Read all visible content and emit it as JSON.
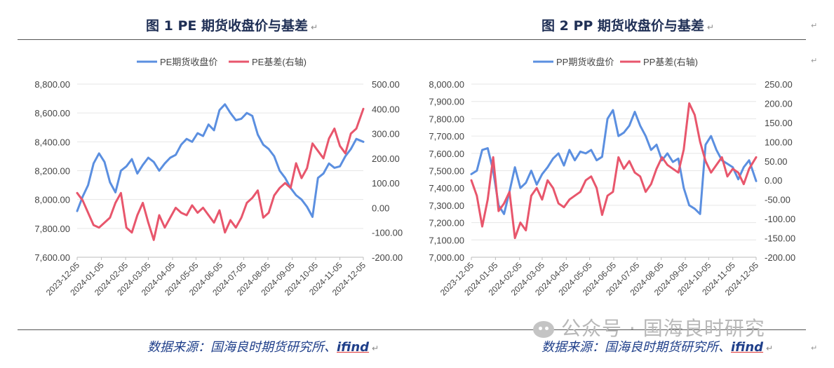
{
  "figures": [
    {
      "title": "图 1 PE 期货收盘价与基差",
      "source_label": "数据来源：国海良时期货研究所、",
      "source_brand": "ifind"
    },
    {
      "title": "图 2 PP 期货收盘价与基差",
      "source_label": "数据来源：国海良时期货研究所、",
      "source_brand": "ifind"
    }
  ],
  "watermark": "公众号 · 国海良时研究",
  "colors": {
    "price": "#5b8fe0",
    "basis": "#e8566c",
    "grid": "#e6e6e6",
    "title": "#1f2f55",
    "source": "#1f3f8a"
  },
  "chart_data": [
    {
      "type": "line",
      "x_type": "date",
      "x_ticks": [
        "2023-12-05",
        "2024-01-05",
        "2024-02-05",
        "2024-03-05",
        "2024-04-05",
        "2024-05-05",
        "2024-06-05",
        "2024-07-05",
        "2024-08-05",
        "2024-09-05",
        "2024-10-05",
        "2024-11-05",
        "2024-12-05"
      ],
      "y_left": {
        "min": 7600,
        "max": 8800,
        "step": 200,
        "tick_labels": [
          "7,600.00",
          "7,800.00",
          "8,000.00",
          "8,200.00",
          "8,400.00",
          "8,600.00",
          "8,800.00"
        ]
      },
      "y_right": {
        "min": -200,
        "max": 500,
        "step": 100,
        "tick_labels": [
          "-200.00",
          "-100.00",
          "0.00",
          "100.00",
          "200.00",
          "300.00",
          "400.00",
          "500.00"
        ]
      },
      "grid": true,
      "legend_position": "top-center",
      "series": [
        {
          "name": "PE期货收盘价",
          "axis": "left",
          "color_key": "price",
          "x": [
            "2023-12-05",
            "2023-12-12",
            "2023-12-19",
            "2023-12-26",
            "2024-01-02",
            "2024-01-09",
            "2024-01-16",
            "2024-01-23",
            "2024-01-30",
            "2024-02-06",
            "2024-02-13",
            "2024-02-20",
            "2024-02-27",
            "2024-03-05",
            "2024-03-12",
            "2024-03-19",
            "2024-03-26",
            "2024-04-02",
            "2024-04-09",
            "2024-04-16",
            "2024-04-23",
            "2024-04-30",
            "2024-05-07",
            "2024-05-14",
            "2024-05-21",
            "2024-05-28",
            "2024-06-04",
            "2024-06-11",
            "2024-06-18",
            "2024-06-25",
            "2024-07-02",
            "2024-07-09",
            "2024-07-16",
            "2024-07-23",
            "2024-07-30",
            "2024-08-06",
            "2024-08-13",
            "2024-08-20",
            "2024-08-27",
            "2024-09-03",
            "2024-09-10",
            "2024-09-17",
            "2024-09-24",
            "2024-10-01",
            "2024-10-08",
            "2024-10-15",
            "2024-10-22",
            "2024-10-29",
            "2024-11-05",
            "2024-11-12",
            "2024-11-19",
            "2024-11-26",
            "2024-12-05"
          ],
          "values": [
            7920,
            8020,
            8100,
            8250,
            8320,
            8260,
            8120,
            8050,
            8200,
            8230,
            8280,
            8180,
            8240,
            8290,
            8260,
            8200,
            8250,
            8290,
            8310,
            8380,
            8420,
            8400,
            8460,
            8440,
            8520,
            8480,
            8620,
            8660,
            8600,
            8550,
            8560,
            8600,
            8580,
            8450,
            8380,
            8350,
            8300,
            8200,
            8150,
            8080,
            8030,
            8000,
            7950,
            7880,
            8150,
            8180,
            8250,
            8220,
            8230,
            8300,
            8350,
            8420,
            8400
          ]
        },
        {
          "name": "PE基差(右轴)",
          "axis": "right",
          "color_key": "basis",
          "x": [
            "2023-12-05",
            "2023-12-12",
            "2023-12-19",
            "2023-12-26",
            "2024-01-02",
            "2024-01-09",
            "2024-01-16",
            "2024-01-23",
            "2024-01-30",
            "2024-02-06",
            "2024-02-13",
            "2024-02-20",
            "2024-02-27",
            "2024-03-05",
            "2024-03-12",
            "2024-03-19",
            "2024-03-26",
            "2024-04-02",
            "2024-04-09",
            "2024-04-16",
            "2024-04-23",
            "2024-04-30",
            "2024-05-07",
            "2024-05-14",
            "2024-05-21",
            "2024-05-28",
            "2024-06-04",
            "2024-06-11",
            "2024-06-18",
            "2024-06-25",
            "2024-07-02",
            "2024-07-09",
            "2024-07-16",
            "2024-07-23",
            "2024-07-30",
            "2024-08-06",
            "2024-08-13",
            "2024-08-20",
            "2024-08-27",
            "2024-09-03",
            "2024-09-10",
            "2024-09-17",
            "2024-09-24",
            "2024-10-01",
            "2024-10-08",
            "2024-10-15",
            "2024-10-22",
            "2024-10-29",
            "2024-11-05",
            "2024-11-12",
            "2024-11-19",
            "2024-11-26",
            "2024-12-05"
          ],
          "values": [
            60,
            30,
            -20,
            -70,
            -80,
            -60,
            -40,
            20,
            60,
            -80,
            -100,
            -30,
            20,
            -60,
            -130,
            -30,
            -80,
            -40,
            0,
            -20,
            -30,
            10,
            -20,
            0,
            -30,
            -60,
            -10,
            -100,
            -50,
            -80,
            -40,
            20,
            40,
            70,
            -40,
            -20,
            50,
            80,
            100,
            80,
            180,
            120,
            160,
            260,
            230,
            200,
            280,
            320,
            250,
            220,
            300,
            320,
            400
          ]
        }
      ]
    },
    {
      "type": "line",
      "x_type": "date",
      "x_ticks": [
        "2023-12-05",
        "2024-01-05",
        "2024-02-05",
        "2024-03-05",
        "2024-04-05",
        "2024-05-05",
        "2024-06-05",
        "2024-07-05",
        "2024-08-05",
        "2024-09-05",
        "2024-10-05",
        "2024-11-05",
        "2024-12-05"
      ],
      "y_left": {
        "min": 7000,
        "max": 8000,
        "step": 100,
        "tick_labels": [
          "7,000.00",
          "7,100.00",
          "7,200.00",
          "7,300.00",
          "7,400.00",
          "7,500.00",
          "7,600.00",
          "7,700.00",
          "7,800.00",
          "7,900.00",
          "8,000.00"
        ]
      },
      "y_right": {
        "min": -200,
        "max": 250,
        "step": 50,
        "tick_labels": [
          "-200.00",
          "-150.00",
          "-100.00",
          "-50.00",
          "0.00",
          "50.00",
          "100.00",
          "150.00",
          "200.00",
          "250.00"
        ]
      },
      "grid": true,
      "legend_position": "top-center",
      "series": [
        {
          "name": "PP期货收盘价",
          "axis": "left",
          "color_key": "price",
          "x": [
            "2023-12-05",
            "2023-12-12",
            "2023-12-19",
            "2023-12-26",
            "2024-01-02",
            "2024-01-09",
            "2024-01-16",
            "2024-01-23",
            "2024-01-30",
            "2024-02-06",
            "2024-02-13",
            "2024-02-20",
            "2024-02-27",
            "2024-03-05",
            "2024-03-12",
            "2024-03-19",
            "2024-03-26",
            "2024-04-02",
            "2024-04-09",
            "2024-04-16",
            "2024-04-23",
            "2024-04-30",
            "2024-05-07",
            "2024-05-14",
            "2024-05-21",
            "2024-05-28",
            "2024-06-04",
            "2024-06-11",
            "2024-06-18",
            "2024-06-25",
            "2024-07-02",
            "2024-07-09",
            "2024-07-16",
            "2024-07-23",
            "2024-07-30",
            "2024-08-06",
            "2024-08-13",
            "2024-08-20",
            "2024-08-27",
            "2024-09-03",
            "2024-09-10",
            "2024-09-17",
            "2024-09-24",
            "2024-10-01",
            "2024-10-08",
            "2024-10-15",
            "2024-10-22",
            "2024-10-29",
            "2024-11-05",
            "2024-11-12",
            "2024-11-19",
            "2024-11-26",
            "2024-12-05"
          ],
          "values": [
            7480,
            7500,
            7620,
            7630,
            7500,
            7300,
            7250,
            7380,
            7520,
            7400,
            7430,
            7500,
            7420,
            7480,
            7520,
            7570,
            7600,
            7530,
            7620,
            7560,
            7610,
            7600,
            7620,
            7560,
            7580,
            7800,
            7850,
            7700,
            7720,
            7760,
            7840,
            7760,
            7700,
            7620,
            7650,
            7560,
            7600,
            7550,
            7570,
            7400,
            7300,
            7280,
            7250,
            7650,
            7700,
            7620,
            7560,
            7540,
            7520,
            7450,
            7520,
            7560,
            7440
          ]
        },
        {
          "name": "PP基差(右轴)",
          "axis": "right",
          "color_key": "basis",
          "x": [
            "2023-12-05",
            "2023-12-12",
            "2023-12-19",
            "2023-12-26",
            "2024-01-02",
            "2024-01-09",
            "2024-01-16",
            "2024-01-23",
            "2024-01-30",
            "2024-02-06",
            "2024-02-13",
            "2024-02-20",
            "2024-02-27",
            "2024-03-05",
            "2024-03-12",
            "2024-03-19",
            "2024-03-26",
            "2024-04-02",
            "2024-04-09",
            "2024-04-16",
            "2024-04-23",
            "2024-04-30",
            "2024-05-07",
            "2024-05-14",
            "2024-05-21",
            "2024-05-28",
            "2024-06-04",
            "2024-06-11",
            "2024-06-18",
            "2024-06-25",
            "2024-07-02",
            "2024-07-09",
            "2024-07-16",
            "2024-07-23",
            "2024-07-30",
            "2024-08-06",
            "2024-08-13",
            "2024-08-20",
            "2024-08-27",
            "2024-09-03",
            "2024-09-10",
            "2024-09-17",
            "2024-09-24",
            "2024-10-01",
            "2024-10-08",
            "2024-10-15",
            "2024-10-22",
            "2024-10-29",
            "2024-11-05",
            "2024-11-12",
            "2024-11-19",
            "2024-11-26",
            "2024-12-05"
          ],
          "values": [
            0,
            -40,
            -120,
            -50,
            60,
            -80,
            -60,
            -30,
            -150,
            -110,
            -130,
            -40,
            -20,
            -50,
            0,
            -20,
            -60,
            -70,
            -50,
            -40,
            -30,
            0,
            10,
            -20,
            -90,
            -40,
            -30,
            60,
            30,
            50,
            20,
            10,
            -30,
            -10,
            30,
            60,
            40,
            30,
            20,
            80,
            200,
            170,
            100,
            50,
            20,
            40,
            60,
            10,
            30,
            20,
            -10,
            30,
            60
          ]
        }
      ]
    }
  ]
}
